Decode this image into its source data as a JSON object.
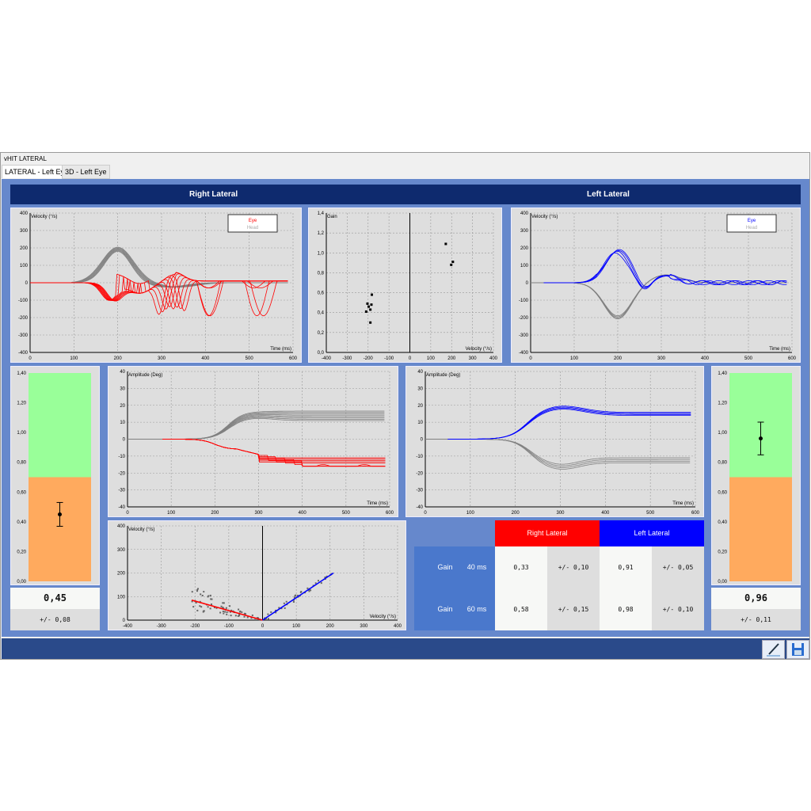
{
  "window": {
    "title": "vHIT LATERAL",
    "tabs": [
      {
        "label": "LATERAL - Left Eye",
        "active": true
      },
      {
        "label": "3D - Left Eye",
        "active": false
      }
    ]
  },
  "header": {
    "right": "Right Lateral",
    "left": "Left Lateral"
  },
  "colors": {
    "right": "#ff0000",
    "left": "#0000ff",
    "head": "#808080",
    "normal": "#99ff99",
    "abnormal": "#ffaa5e",
    "navy": "#0e2a6e"
  },
  "charts": {
    "right_velocity": {
      "ylabel": "Velocity (°/s)",
      "xlabel": "Time (ms)",
      "xlim": [
        0,
        600
      ],
      "ylim": [
        -400,
        400
      ],
      "legend": [
        "Eye",
        "Head"
      ]
    },
    "gain_scatter": {
      "ylabel": "Gain",
      "xlabel": "Velocity (°/s)",
      "xlim": [
        -400,
        400
      ],
      "ylim": [
        0,
        1.4
      ],
      "points": [
        [
          -203,
          0.49
        ],
        [
          -197,
          0.46
        ],
        [
          -182,
          0.58
        ],
        [
          -184,
          0.48
        ],
        [
          -189,
          0.43
        ],
        [
          -209,
          0.41
        ],
        [
          -189,
          0.3
        ],
        [
          172,
          1.09
        ],
        [
          206,
          0.91
        ],
        [
          198,
          0.88
        ]
      ]
    },
    "left_velocity": {
      "ylabel": "Velocity (°/s)",
      "xlabel": "Time (ms)",
      "xlim": [
        0,
        600
      ],
      "ylim": [
        -400,
        400
      ],
      "legend": [
        "Eye",
        "Head"
      ]
    },
    "right_amplitude": {
      "ylabel": "Amplitude (Deg)",
      "xlabel": "Time (ms)",
      "xlim": [
        0,
        600
      ],
      "ylim": [
        -40,
        40
      ]
    },
    "left_amplitude": {
      "ylabel": "Amplitude (Deg)",
      "xlabel": "Time (ms)",
      "xlim": [
        0,
        600
      ],
      "ylim": [
        -40,
        40
      ]
    },
    "regression": {
      "ylabel": "Velocity (°/s)",
      "xlabel": "Velocity (°/s)",
      "xlim": [
        -400,
        400
      ],
      "ylim": [
        0,
        400
      ],
      "right_line": [
        [
          -210,
          85
        ],
        [
          0,
          0
        ]
      ],
      "left_line": [
        [
          0,
          0
        ],
        [
          210,
          200
        ]
      ]
    },
    "right_gain_bar": {
      "ylim": [
        0,
        1.4
      ],
      "threshold": 0.7,
      "gain": 0.45,
      "err": 0.08
    },
    "left_gain_bar": {
      "ylim": [
        0,
        1.4
      ],
      "threshold": 0.7,
      "gain": 0.96,
      "err": 0.11
    }
  },
  "right_gain": {
    "value": "0,45",
    "sd": "+/- 0,08"
  },
  "left_gain": {
    "value": "0,96",
    "sd": "+/- 0,11"
  },
  "table": {
    "head_right": "Right Lateral",
    "head_left": "Left Lateral",
    "rows": [
      {
        "label": "Gain",
        "time": "40 ms",
        "r": "0,33",
        "rsd": "+/- 0,10",
        "l": "0,91",
        "lsd": "+/- 0,05"
      },
      {
        "label": "Gain",
        "time": "60 ms",
        "r": "0,58",
        "rsd": "+/- 0,15",
        "l": "0,98",
        "lsd": "+/- 0,10"
      }
    ]
  },
  "toolbar": {
    "edit_icon": "pen-icon",
    "save_icon": "floppy-disk-icon"
  }
}
